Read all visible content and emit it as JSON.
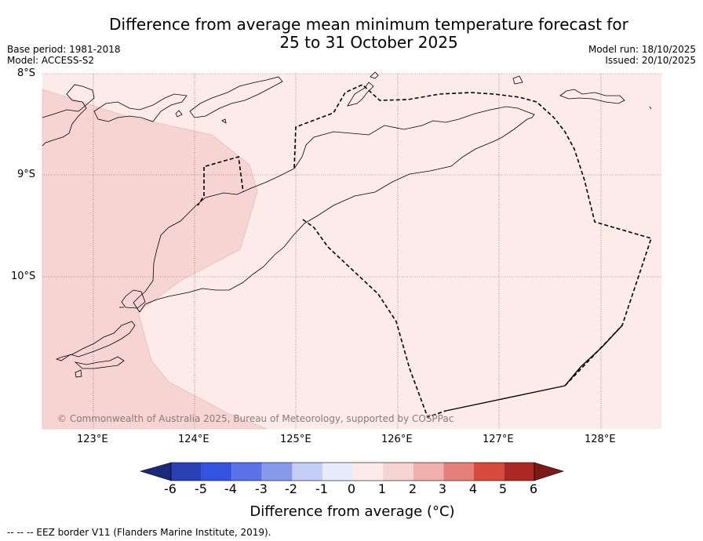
{
  "title": {
    "line1": "Difference from average mean minimum temperature forecast for",
    "line2": "25 to 31 October 2025"
  },
  "meta": {
    "base_period": "Base period: 1981-2018",
    "model": "Model: ACCESS-S2",
    "model_run": "Model run: 18/10/2025",
    "issued": "Issued: 20/10/2025"
  },
  "axes": {
    "lon_ticks": [
      "123°E",
      "124°E",
      "125°E",
      "126°E",
      "127°E",
      "128°E"
    ],
    "lat_ticks": [
      "8°S",
      "9°S",
      "10°S"
    ]
  },
  "copyright": "© Commonwealth of Australia 2025, Bureau of Meteorology, supported by COSPPac",
  "colorbar": {
    "title": "Difference from average (°C)",
    "tick_labels": [
      "-6",
      "-5",
      "-4",
      "-3",
      "-2",
      "-1",
      "0",
      "1",
      "2",
      "3",
      "4",
      "5",
      "6"
    ],
    "colors": {
      "lt_-6": "#1b2a78",
      "-6_-5": "#2a40b4",
      "-5_-4": "#3353e0",
      "-4_-3": "#5a72e6",
      "-3_-2": "#8799ea",
      "-2_-1": "#c3cdf5",
      "-1_0": "#e8ecfa",
      "0_1": "#fcebe9",
      "1_2": "#f6d4d2",
      "2_3": "#efb0ab",
      "3_4": "#e4807a",
      "4_5": "#d84a3c",
      "5_6": "#ac2a23",
      "gt_6": "#7a1b18"
    }
  },
  "map": {
    "background_category": "0 to 1",
    "overlay_category": "1 to 2",
    "coastline_color": "#000000",
    "eez_line_style": "dashed"
  },
  "footer_legend": "--  --  -- EEZ border V11 (Flanders Marine Institute, 2019)."
}
